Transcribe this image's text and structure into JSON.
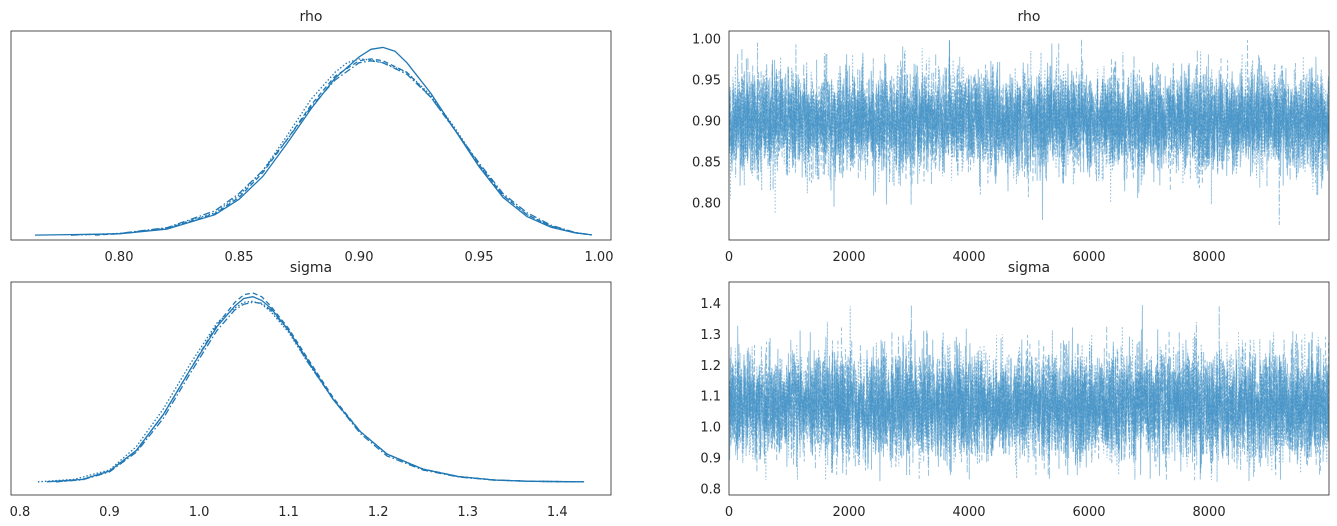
{
  "colors": {
    "line": "#1f77b4",
    "trace": "#3f8fc4",
    "frame": "#262626",
    "background": "#ffffff"
  },
  "chart_data": [
    {
      "type": "line",
      "title": "rho",
      "xlabel": "",
      "ylabel": "",
      "xlim": [
        0.755,
        1.005
      ],
      "xticks": [
        "0.80",
        "0.85",
        "0.90",
        "0.95",
        "1.00"
      ],
      "xtick_values": [
        0.8,
        0.85,
        0.9,
        0.95,
        1.0
      ],
      "yticks": [],
      "grid": false,
      "series": [
        {
          "linestyle": "solid",
          "x": [
            0.765,
            0.8,
            0.82,
            0.84,
            0.85,
            0.86,
            0.87,
            0.88,
            0.89,
            0.9,
            0.905,
            0.91,
            0.915,
            0.92,
            0.93,
            0.94,
            0.95,
            0.96,
            0.97,
            0.98,
            0.99,
            0.997
          ],
          "y": [
            0.004,
            0.01,
            0.035,
            0.11,
            0.19,
            0.31,
            0.48,
            0.66,
            0.82,
            0.93,
            0.97,
            0.98,
            0.96,
            0.9,
            0.74,
            0.55,
            0.36,
            0.2,
            0.1,
            0.045,
            0.015,
            0.005
          ]
        },
        {
          "linestyle": "dotted",
          "x": [
            0.78,
            0.8,
            0.82,
            0.84,
            0.85,
            0.86,
            0.87,
            0.88,
            0.89,
            0.895,
            0.9,
            0.905,
            0.91,
            0.92,
            0.93,
            0.94,
            0.95,
            0.96,
            0.97,
            0.98,
            0.99,
            0.997
          ],
          "y": [
            0.004,
            0.012,
            0.04,
            0.12,
            0.21,
            0.34,
            0.52,
            0.71,
            0.85,
            0.9,
            0.92,
            0.915,
            0.9,
            0.85,
            0.73,
            0.56,
            0.37,
            0.21,
            0.11,
            0.05,
            0.016,
            0.005
          ]
        },
        {
          "linestyle": "dashed",
          "x": [
            0.79,
            0.8,
            0.82,
            0.84,
            0.85,
            0.86,
            0.87,
            0.88,
            0.89,
            0.9,
            0.905,
            0.91,
            0.92,
            0.93,
            0.94,
            0.95,
            0.96,
            0.97,
            0.98,
            0.99,
            0.997
          ],
          "y": [
            0.004,
            0.011,
            0.038,
            0.115,
            0.2,
            0.33,
            0.5,
            0.68,
            0.83,
            0.91,
            0.92,
            0.91,
            0.85,
            0.72,
            0.55,
            0.37,
            0.21,
            0.11,
            0.05,
            0.016,
            0.005
          ]
        },
        {
          "linestyle": "dashdot",
          "x": [
            0.78,
            0.8,
            0.82,
            0.84,
            0.85,
            0.86,
            0.87,
            0.88,
            0.89,
            0.9,
            0.905,
            0.91,
            0.92,
            0.93,
            0.94,
            0.95,
            0.96,
            0.97,
            0.98,
            0.99,
            0.997
          ],
          "y": [
            0.004,
            0.012,
            0.042,
            0.13,
            0.22,
            0.34,
            0.5,
            0.67,
            0.81,
            0.9,
            0.91,
            0.9,
            0.84,
            0.72,
            0.55,
            0.38,
            0.22,
            0.12,
            0.055,
            0.018,
            0.005
          ]
        }
      ]
    },
    {
      "type": "line",
      "title": "rho",
      "xlabel": "",
      "ylabel": "",
      "xlim": [
        0,
        9999
      ],
      "ylim": [
        0.755,
        1.01
      ],
      "xticks": [
        "0",
        "2000",
        "4000",
        "6000",
        "8000"
      ],
      "xtick_values": [
        0,
        2000,
        4000,
        6000,
        8000
      ],
      "yticks": [
        "0.80",
        "0.85",
        "0.90",
        "0.95",
        "1.00"
      ],
      "ytick_values": [
        0.8,
        0.85,
        0.9,
        0.95,
        1.0
      ],
      "grid": false,
      "n_chains": 4,
      "draws": 10000,
      "center": 0.9,
      "spread": 0.03,
      "min": 0.765,
      "max": 1.0
    },
    {
      "type": "line",
      "title": "sigma",
      "xlabel": "",
      "ylabel": "",
      "xlim": [
        0.79,
        1.46
      ],
      "xticks": [
        "0.8",
        "0.9",
        "1.0",
        "1.1",
        "1.2",
        "1.3",
        "1.4"
      ],
      "xtick_values": [
        0.8,
        0.9,
        1.0,
        1.1,
        1.2,
        1.3,
        1.4
      ],
      "yticks": [],
      "grid": false,
      "series": [
        {
          "linestyle": "solid",
          "x": [
            0.83,
            0.87,
            0.9,
            0.93,
            0.96,
            0.99,
            1.02,
            1.04,
            1.05,
            1.06,
            1.07,
            1.08,
            1.1,
            1.12,
            1.15,
            1.18,
            1.21,
            1.25,
            1.29,
            1.33,
            1.37,
            1.43
          ],
          "y": [
            0.002,
            0.015,
            0.06,
            0.17,
            0.36,
            0.6,
            0.83,
            0.94,
            0.98,
            0.99,
            0.97,
            0.93,
            0.81,
            0.66,
            0.44,
            0.27,
            0.15,
            0.07,
            0.03,
            0.012,
            0.005,
            0.002
          ]
        },
        {
          "linestyle": "dotted",
          "x": [
            0.82,
            0.86,
            0.9,
            0.93,
            0.96,
            0.99,
            1.02,
            1.04,
            1.05,
            1.06,
            1.07,
            1.08,
            1.1,
            1.12,
            1.15,
            1.18,
            1.21,
            1.25,
            1.29,
            1.33,
            1.37,
            1.43
          ],
          "y": [
            0.002,
            0.015,
            0.065,
            0.19,
            0.39,
            0.63,
            0.85,
            0.93,
            0.96,
            0.965,
            0.95,
            0.91,
            0.8,
            0.65,
            0.44,
            0.27,
            0.15,
            0.07,
            0.03,
            0.012,
            0.005,
            0.002
          ]
        },
        {
          "linestyle": "dashed",
          "x": [
            0.84,
            0.87,
            0.9,
            0.93,
            0.96,
            0.99,
            1.02,
            1.04,
            1.05,
            1.06,
            1.07,
            1.08,
            1.1,
            1.12,
            1.15,
            1.18,
            1.21,
            1.25,
            1.29,
            1.33,
            1.37,
            1.42
          ],
          "y": [
            0.002,
            0.015,
            0.06,
            0.17,
            0.36,
            0.6,
            0.84,
            0.96,
            1.0,
            1.01,
            0.99,
            0.94,
            0.82,
            0.67,
            0.45,
            0.27,
            0.15,
            0.07,
            0.03,
            0.012,
            0.005,
            0.002
          ]
        },
        {
          "linestyle": "dashdot",
          "x": [
            0.84,
            0.87,
            0.9,
            0.93,
            0.96,
            0.99,
            1.02,
            1.04,
            1.05,
            1.06,
            1.07,
            1.08,
            1.1,
            1.12,
            1.15,
            1.18,
            1.21,
            1.25,
            1.29,
            1.33,
            1.37,
            1.42
          ],
          "y": [
            0.002,
            0.013,
            0.055,
            0.16,
            0.34,
            0.58,
            0.81,
            0.92,
            0.95,
            0.96,
            0.955,
            0.92,
            0.81,
            0.65,
            0.44,
            0.26,
            0.14,
            0.065,
            0.028,
            0.011,
            0.005,
            0.002
          ]
        }
      ]
    },
    {
      "type": "line",
      "title": "sigma",
      "xlabel": "",
      "ylabel": "",
      "xlim": [
        0,
        9999
      ],
      "ylim": [
        0.78,
        1.47
      ],
      "xticks": [
        "0",
        "2000",
        "4000",
        "6000",
        "8000"
      ],
      "xtick_values": [
        0,
        2000,
        4000,
        6000,
        8000
      ],
      "yticks": [
        "0.8",
        "0.9",
        "1.0",
        "1.1",
        "1.2",
        "1.3",
        "1.4"
      ],
      "ytick_values": [
        0.8,
        0.9,
        1.0,
        1.1,
        1.2,
        1.3,
        1.4
      ],
      "grid": false,
      "n_chains": 4,
      "draws": 10000,
      "center": 1.07,
      "spread": 0.085,
      "min": 0.82,
      "max": 1.44
    }
  ]
}
